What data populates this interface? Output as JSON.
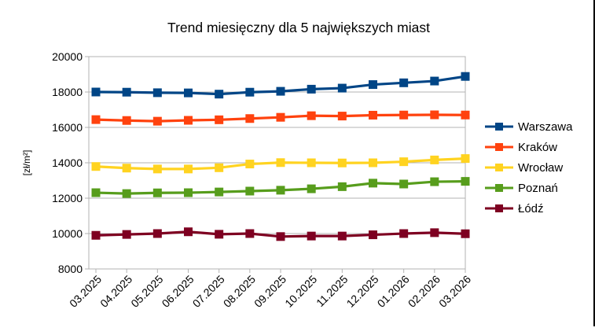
{
  "window": {
    "background": "#ffffff",
    "edge_color": "#000000"
  },
  "chart_data": {
    "type": "line",
    "title": "Trend miesięczny dla 5 największych miast",
    "ylabel": "[zł/m²]",
    "xlabel": "",
    "grid": true,
    "legend_position": "right",
    "marker": "square",
    "ylim": [
      8000,
      20000
    ],
    "ytick_step": 2000,
    "axis_color": "#b3b3b3",
    "categories": [
      "03.2025",
      "04.2025",
      "05.2025",
      "06.2025",
      "07.2025",
      "08.2025",
      "09.2025",
      "10.2025",
      "11.2025",
      "12.2025",
      "01.2026",
      "02.2026",
      "03.2026"
    ],
    "series": [
      {
        "name": "Warszawa",
        "color": "#004586",
        "values": [
          18000,
          17990,
          17960,
          17950,
          17880,
          17990,
          18040,
          18160,
          18220,
          18420,
          18520,
          18620,
          18880
        ]
      },
      {
        "name": "Kraków",
        "color": "#ff420e",
        "values": [
          16440,
          16390,
          16350,
          16400,
          16430,
          16500,
          16570,
          16660,
          16640,
          16690,
          16700,
          16710,
          16700
        ]
      },
      {
        "name": "Wrocław",
        "color": "#ffd320",
        "values": [
          13790,
          13700,
          13650,
          13650,
          13720,
          13930,
          14010,
          14000,
          13990,
          14000,
          14060,
          14160,
          14240
        ]
      },
      {
        "name": "Poznań",
        "color": "#579d1c",
        "values": [
          12310,
          12260,
          12300,
          12310,
          12350,
          12400,
          12450,
          12530,
          12650,
          12850,
          12800,
          12930,
          12950
        ]
      },
      {
        "name": "Łódź",
        "color": "#7e0021",
        "values": [
          9900,
          9950,
          10000,
          10100,
          9960,
          10000,
          9830,
          9860,
          9860,
          9930,
          10000,
          10050,
          9990
        ]
      }
    ]
  }
}
